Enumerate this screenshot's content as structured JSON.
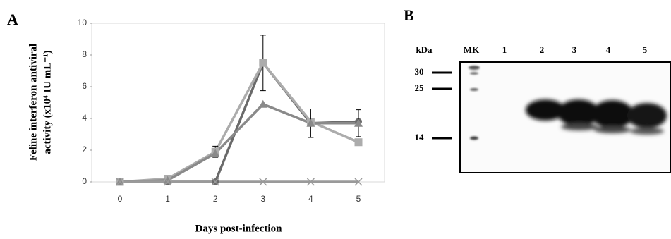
{
  "chart_data": {
    "type": "line",
    "panel_label": "A",
    "xlabel": "Days post-infection",
    "ylabel": [
      "Feline interferon antiviral",
      "activity  (x10⁴ IU mL⁻¹)"
    ],
    "categories": [
      "0",
      "1",
      "2",
      "3",
      "4",
      "5"
    ],
    "ylim": [
      0,
      10
    ],
    "yticks": [
      0,
      2,
      4,
      6,
      8,
      10
    ],
    "series": [
      {
        "marker": "circle",
        "color": "#6a6a6a",
        "values": [
          0,
          0,
          0,
          7.5,
          3.7,
          3.8
        ],
        "errors": [
          null,
          null,
          null,
          null,
          null,
          null
        ]
      },
      {
        "marker": "square",
        "color": "#acacac",
        "values": [
          0,
          0.2,
          1.9,
          7.5,
          3.8,
          2.5
        ],
        "errors": [
          null,
          null,
          0.35,
          1.75,
          null,
          null
        ]
      },
      {
        "marker": "triangle",
        "color": "#8a8a8a",
        "values": [
          0,
          0.1,
          1.8,
          4.9,
          3.7,
          3.7
        ],
        "errors": [
          null,
          null,
          null,
          null,
          0.9,
          0.85
        ]
      },
      {
        "marker": "x",
        "color": "#9a9a9a",
        "values": [
          0,
          0,
          0,
          0,
          0,
          0
        ],
        "errors": [
          null,
          null,
          null,
          null,
          null,
          null
        ]
      }
    ]
  },
  "blot": {
    "panel_label": "B",
    "unit_label": "kDa",
    "lanes": [
      "MK",
      "1",
      "2",
      "3",
      "4",
      "5"
    ],
    "markers": [
      30,
      25,
      14
    ]
  }
}
